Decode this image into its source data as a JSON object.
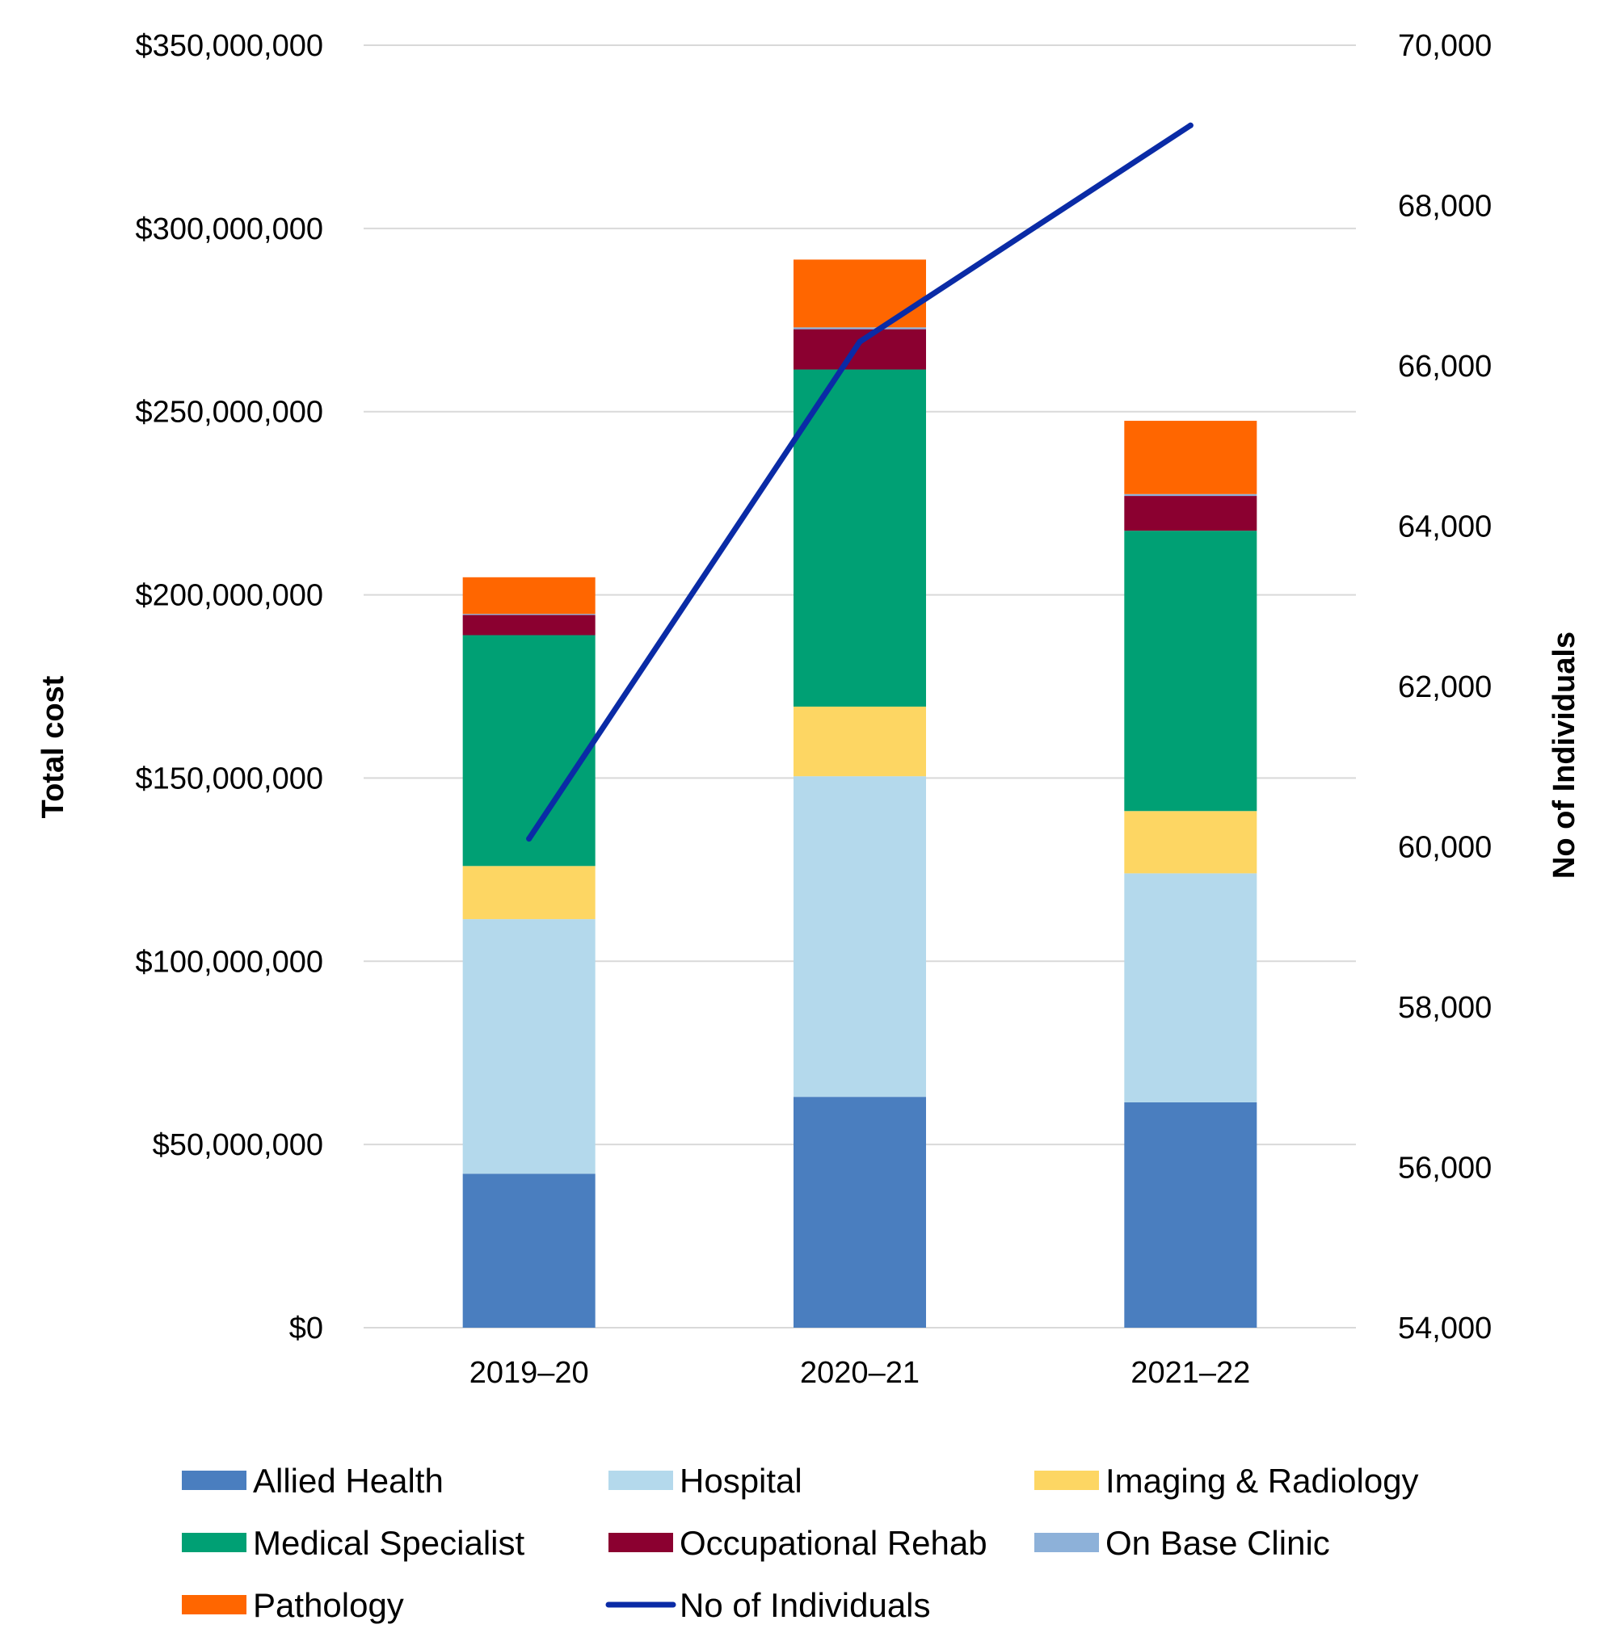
{
  "chart_data": {
    "type": "bar",
    "stacked": true,
    "categories": [
      "2019–20",
      "2020–21",
      "2021–22"
    ],
    "series": [
      {
        "name": "Allied Health",
        "color": "#4A7EBF",
        "values": [
          42000000,
          63000000,
          61500000
        ]
      },
      {
        "name": "Hospital",
        "color": "#B4D9EC",
        "values": [
          69500000,
          87500000,
          62500000
        ]
      },
      {
        "name": "Imaging & Radiology",
        "color": "#FDD663",
        "values": [
          14500000,
          19000000,
          17000000
        ]
      },
      {
        "name": "Medical Specialist",
        "color": "#00A074",
        "values": [
          63000000,
          92000000,
          76500000
        ]
      },
      {
        "name": "Occupational Rehab",
        "color": "#8B0030",
        "values": [
          5500000,
          11000000,
          9500000
        ]
      },
      {
        "name": "On Base Clinic",
        "color": "#8DB1D9",
        "values": [
          300000,
          500000,
          500000
        ]
      },
      {
        "name": "Pathology",
        "color": "#FF6600",
        "values": [
          10000000,
          18500000,
          20000000
        ]
      }
    ],
    "line_series": {
      "name": "No of Individuals",
      "color": "#0A2BA6",
      "axis": "right",
      "values": [
        60100,
        66300,
        69000
      ]
    },
    "ylabel": "Total cost",
    "ylabel_right": "No of Individuals",
    "ylim": [
      0,
      350000000
    ],
    "ylim_right": [
      54000,
      70000
    ],
    "yticks": [
      "$0",
      "$50,000,000",
      "$100,000,000",
      "$150,000,000",
      "$200,000,000",
      "$250,000,000",
      "$300,000,000",
      "$350,000,000"
    ],
    "yticks_right": [
      "54,000",
      "56,000",
      "58,000",
      "60,000",
      "62,000",
      "64,000",
      "66,000",
      "68,000",
      "70,000"
    ],
    "grid": true,
    "legend_position": "bottom"
  }
}
